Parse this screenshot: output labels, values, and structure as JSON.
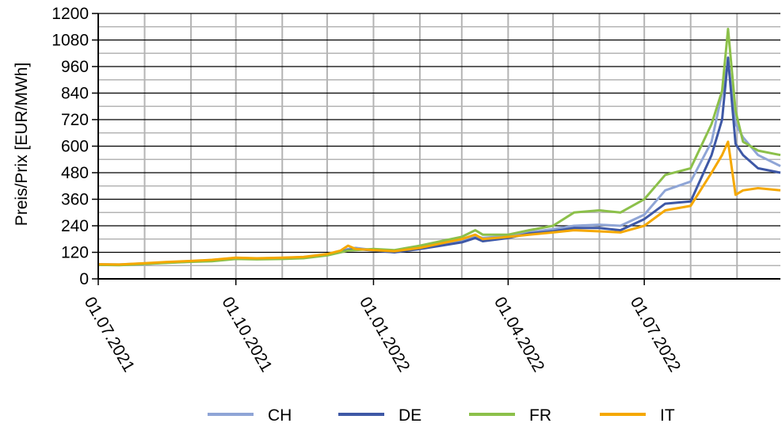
{
  "chart_data": {
    "type": "line",
    "title": "",
    "xlabel": "",
    "ylabel": "Preis/Prix [EUR/MWh]",
    "ylim": [
      0,
      1200
    ],
    "yticks": [
      0,
      120,
      240,
      360,
      480,
      600,
      720,
      840,
      960,
      1080,
      1200
    ],
    "xlim": [
      "2021-07-01",
      "2022-09-30"
    ],
    "xticks": [
      "01.07.2021",
      "01.10.2021",
      "01.01.2022",
      "01.04.2022",
      "01.07.2022"
    ],
    "grid": true,
    "legend": "bottom",
    "x": [
      "2021-07-01",
      "2021-07-15",
      "2021-08-01",
      "2021-08-15",
      "2021-09-01",
      "2021-09-15",
      "2021-10-01",
      "2021-10-15",
      "2021-11-01",
      "2021-11-15",
      "2021-12-01",
      "2021-12-10",
      "2021-12-15",
      "2021-12-20",
      "2022-01-01",
      "2022-01-15",
      "2022-02-01",
      "2022-02-15",
      "2022-03-01",
      "2022-03-10",
      "2022-03-15",
      "2022-04-01",
      "2022-04-15",
      "2022-05-01",
      "2022-05-15",
      "2022-06-01",
      "2022-06-15",
      "2022-07-01",
      "2022-07-15",
      "2022-08-01",
      "2022-08-15",
      "2022-08-22",
      "2022-08-26",
      "2022-08-31",
      "2022-09-05",
      "2022-09-15",
      "2022-09-30"
    ],
    "series": [
      {
        "name": "CH",
        "color": "#8fa5d6",
        "values": [
          66,
          65,
          70,
          75,
          80,
          85,
          95,
          92,
          95,
          98,
          110,
          125,
          135,
          140,
          130,
          125,
          140,
          160,
          175,
          195,
          185,
          195,
          210,
          225,
          240,
          245,
          240,
          290,
          400,
          440,
          620,
          840,
          980,
          700,
          640,
          560,
          510
        ]
      },
      {
        "name": "DE",
        "color": "#3e58a6",
        "values": [
          64,
          63,
          68,
          73,
          78,
          82,
          92,
          90,
          92,
          95,
          108,
          122,
          130,
          135,
          128,
          120,
          135,
          150,
          165,
          185,
          170,
          185,
          205,
          215,
          230,
          230,
          220,
          270,
          340,
          350,
          560,
          720,
          1000,
          610,
          560,
          500,
          480
        ]
      },
      {
        "name": "FR",
        "color": "#8cc04a",
        "values": [
          63,
          62,
          67,
          72,
          77,
          80,
          90,
          88,
          90,
          93,
          106,
          120,
          128,
          130,
          135,
          130,
          150,
          170,
          190,
          220,
          200,
          200,
          220,
          240,
          300,
          310,
          300,
          360,
          470,
          500,
          700,
          850,
          1130,
          760,
          620,
          580,
          560
        ]
      },
      {
        "name": "IT",
        "color": "#f5a800",
        "values": [
          66,
          65,
          71,
          76,
          81,
          86,
          96,
          93,
          96,
          99,
          112,
          128,
          150,
          135,
          130,
          125,
          140,
          160,
          180,
          200,
          180,
          190,
          200,
          210,
          220,
          215,
          210,
          240,
          310,
          330,
          480,
          560,
          620,
          380,
          400,
          410,
          400
        ]
      }
    ]
  }
}
